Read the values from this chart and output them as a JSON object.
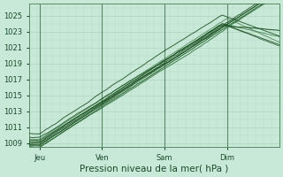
{
  "xlabel": "Pression niveau de la mer( hPa )",
  "bg_color": "#c8e8d8",
  "plot_bg_color": "#c8e8d8",
  "grid_major_color": "#b0d4c0",
  "grid_minor_color": "#b8dcc8",
  "line_color_dark": "#1a5020",
  "line_color_mid": "#2d6e35",
  "xlim": [
    0,
    96
  ],
  "ylim": [
    1008.5,
    1026.5
  ],
  "yticks": [
    1009,
    1011,
    1013,
    1015,
    1017,
    1019,
    1021,
    1023,
    1025
  ],
  "xtick_labels": [
    "Jeu",
    "Ven",
    "Sam",
    "Dim"
  ],
  "xtick_positions": [
    4,
    28,
    52,
    76
  ],
  "vline_positions": [
    4,
    28,
    52,
    76
  ],
  "tick_fontsize": 6,
  "xlabel_fontsize": 7.5
}
